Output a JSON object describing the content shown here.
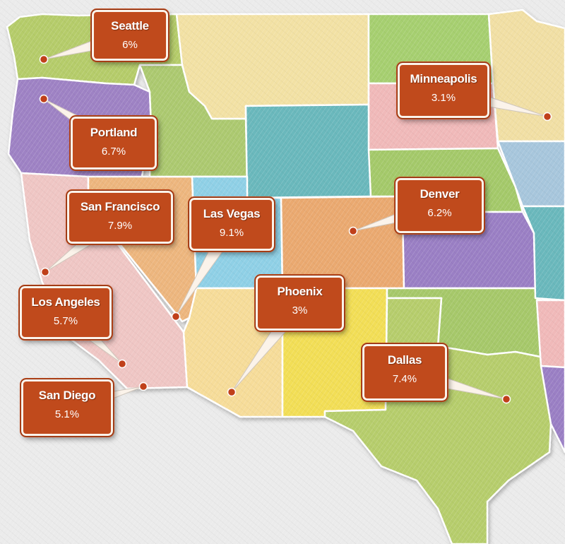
{
  "map": {
    "colors": {
      "background": "#ebebeb",
      "label_fill": "#c04a1c",
      "label_border": "#fbf3ea",
      "marker": "#c0401a",
      "state_border": "#ffffff"
    },
    "cities": [
      {
        "id": "seattle",
        "name": "Seattle",
        "value": "6%"
      },
      {
        "id": "portland",
        "name": "Portland",
        "value": "6.7%"
      },
      {
        "id": "san-francisco",
        "name": "San Francisco",
        "value": "7.9%"
      },
      {
        "id": "los-angeles",
        "name": "Los Angeles",
        "value": "5.7%"
      },
      {
        "id": "san-diego",
        "name": "San Diego",
        "value": "5.1%"
      },
      {
        "id": "las-vegas",
        "name": "Las Vegas",
        "value": "9.1%"
      },
      {
        "id": "phoenix",
        "name": "Phoenix",
        "value": "3%"
      },
      {
        "id": "denver",
        "name": "Denver",
        "value": "6.2%"
      },
      {
        "id": "dallas",
        "name": "Dallas",
        "value": "7.4%"
      },
      {
        "id": "minneapolis",
        "name": "Minneapolis",
        "value": "3.1%"
      }
    ]
  }
}
